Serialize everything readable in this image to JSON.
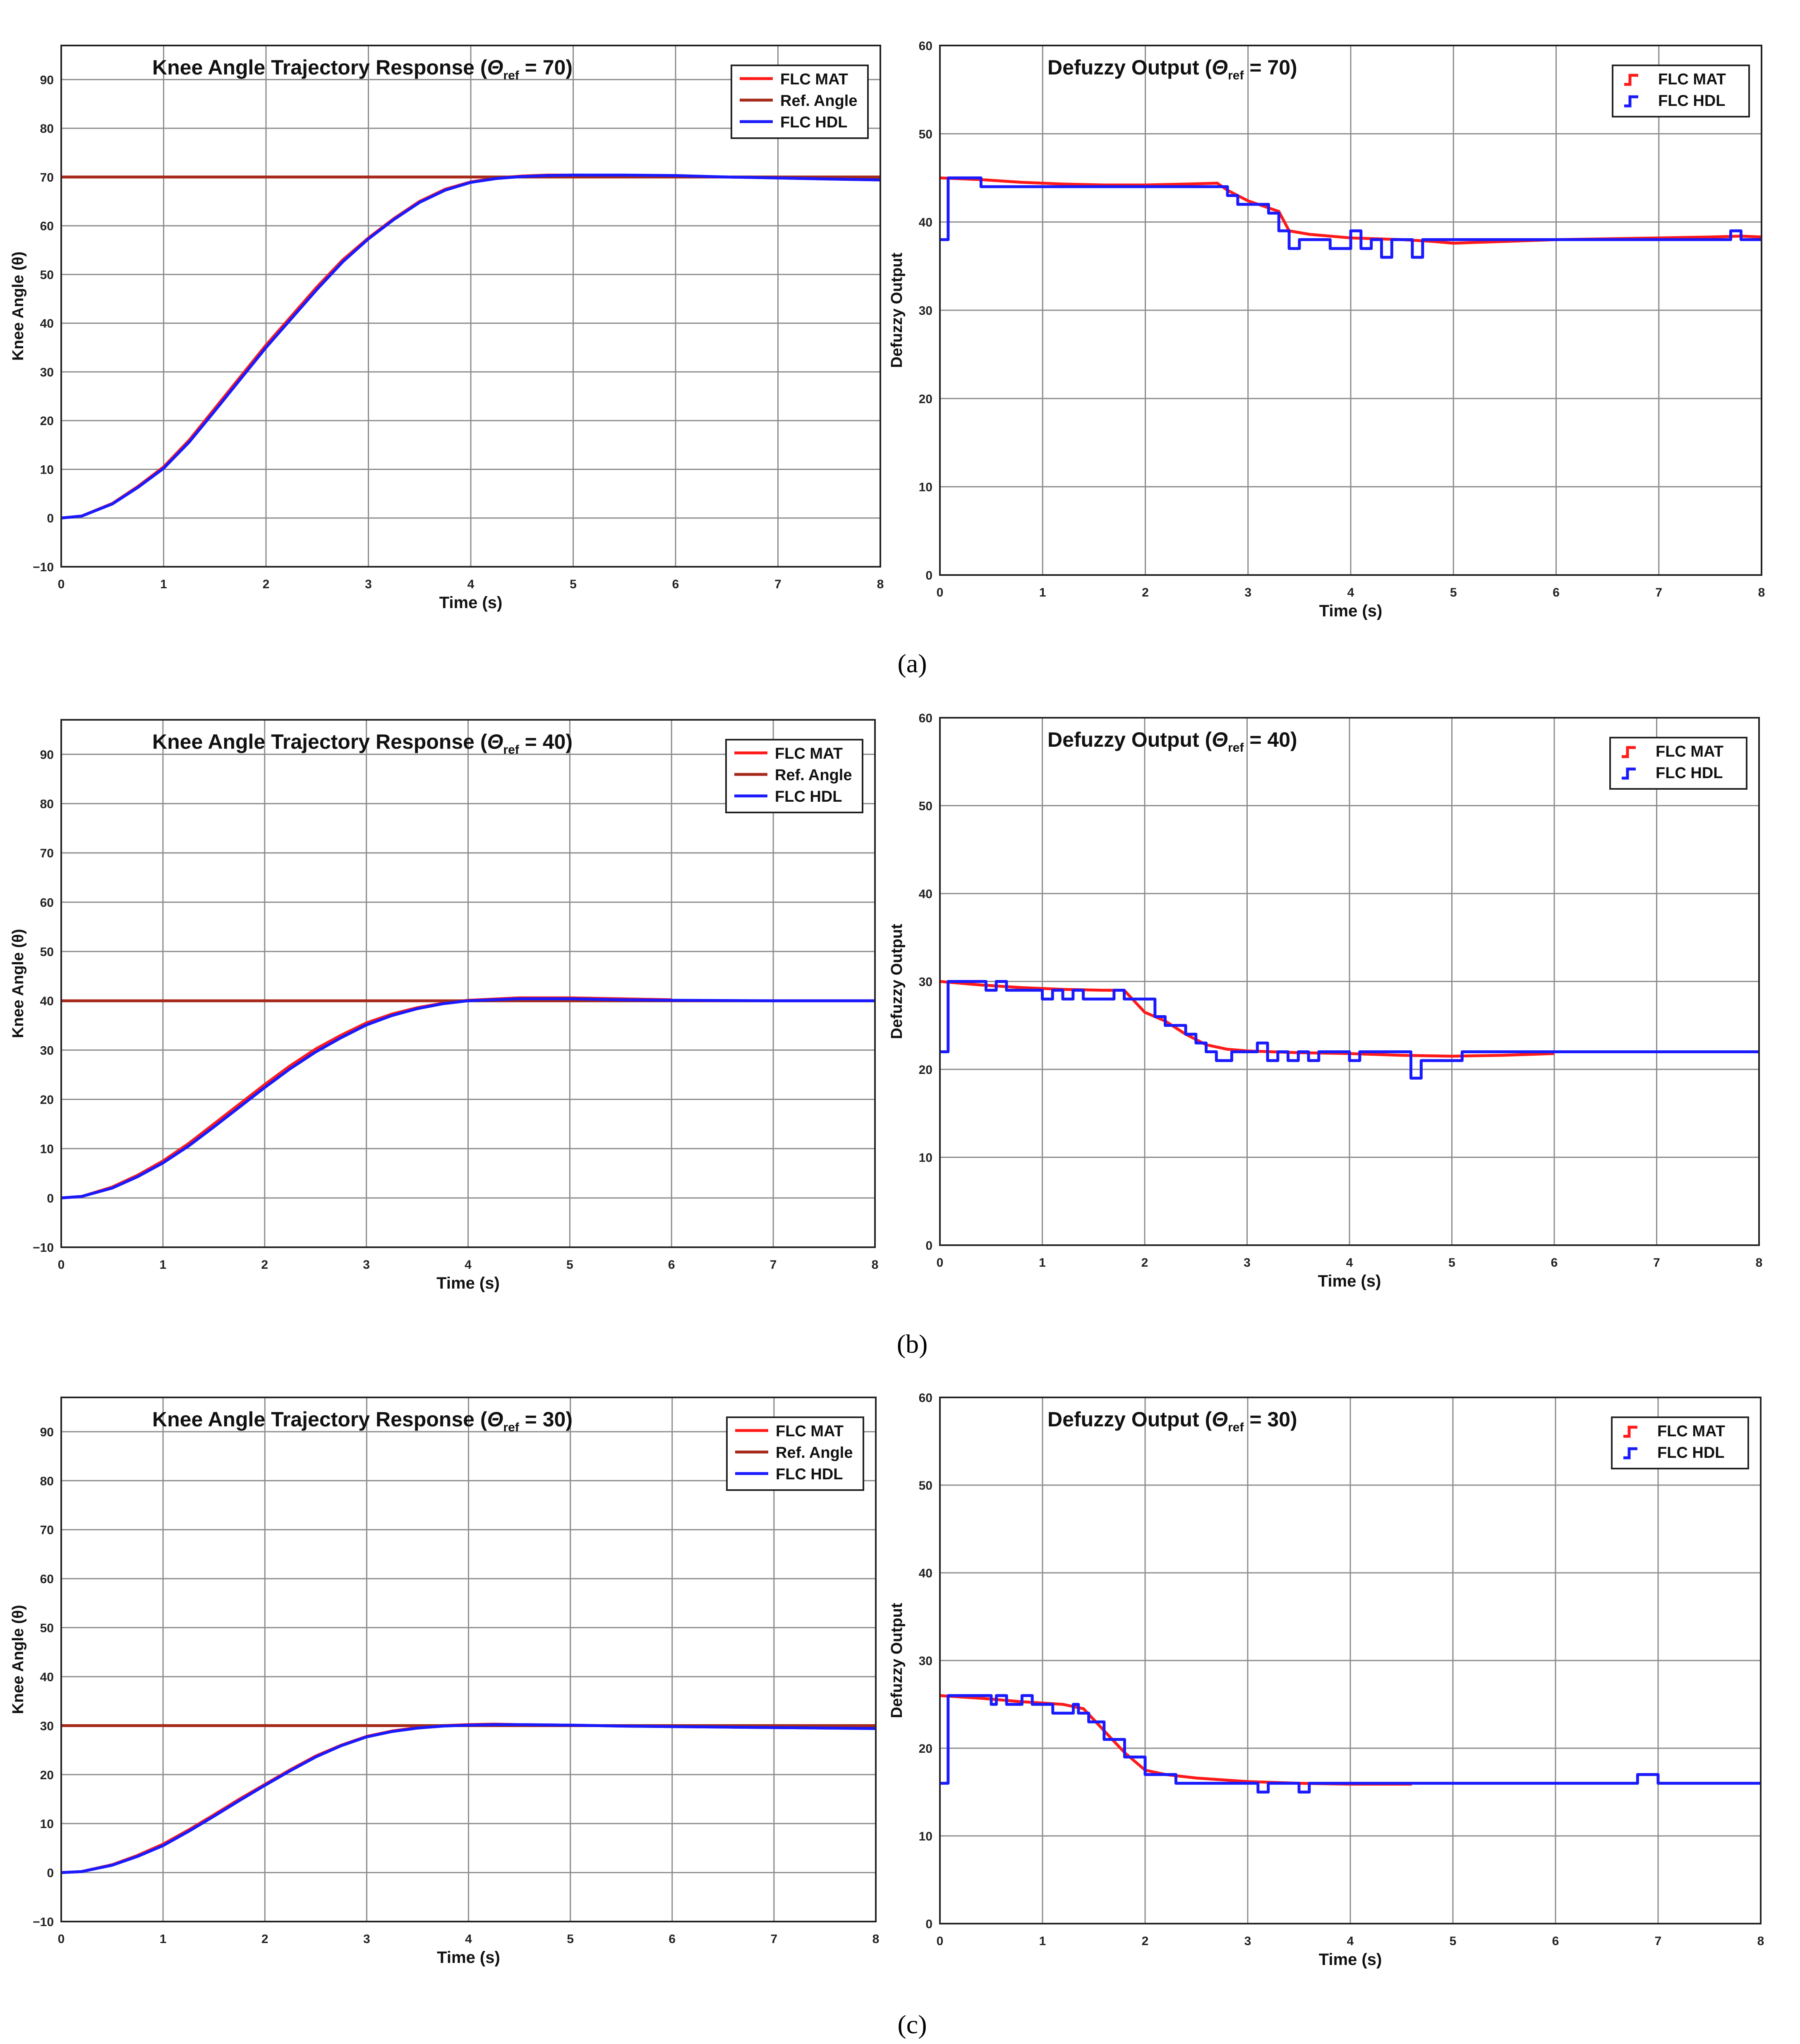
{
  "captions": [
    "(a)",
    "(b)",
    "(c)"
  ],
  "colors": {
    "flc_mat": "#ff1a1a",
    "ref_angle": "#a52a1a",
    "flc_hdl": "#1a1aff",
    "grid": "#8c8c8c",
    "axis": "#222222"
  },
  "chart_data": [
    {
      "type": "line",
      "title_main": "Knee Angle Trajectory Response (",
      "title_symbol": "Θ",
      "title_sub": "ref",
      "title_tail": " = 70)",
      "xlabel": "Time (s)",
      "ylabel": "Knee Angle (θ)",
      "xlim": [
        0,
        8
      ],
      "ylim": [
        -10,
        97
      ],
      "xticks": [
        0,
        1,
        2,
        3,
        4,
        5,
        6,
        7,
        8
      ],
      "yticks": [
        -10,
        0,
        10,
        20,
        30,
        40,
        50,
        60,
        70,
        80,
        90
      ],
      "xtick_labels": [
        "0",
        "1",
        "2",
        "3",
        "4",
        "5",
        "6",
        "7",
        "8"
      ],
      "ytick_labels": [
        "−10",
        "0",
        "10",
        "20",
        "30",
        "40",
        "50",
        "60",
        "70",
        "80",
        "90"
      ],
      "grid": true,
      "legend_position": "top-right",
      "legend_style": "line",
      "series": [
        {
          "name": "FLC MAT",
          "color_key": "flc_mat",
          "step": false,
          "x": [
            0,
            0.2,
            0.5,
            0.75,
            1,
            1.25,
            1.5,
            1.75,
            2,
            2.25,
            2.5,
            2.75,
            3,
            3.25,
            3.5,
            3.75,
            4,
            4.25,
            4.5,
            4.75,
            5,
            5.5,
            6,
            6.5,
            7,
            7.5,
            8
          ],
          "y": [
            0,
            0.4,
            3,
            6.5,
            10.5,
            16,
            22.5,
            29,
            35.5,
            41.5,
            47.5,
            53,
            57.5,
            61.5,
            65,
            67.5,
            69,
            69.8,
            70.2,
            70.4,
            70.4,
            70.3,
            70.2,
            70,
            69.8,
            69.6,
            69.4
          ]
        },
        {
          "name": "Ref. Angle",
          "color_key": "ref_angle",
          "step": false,
          "x": [
            0,
            8
          ],
          "y": [
            70,
            70
          ]
        },
        {
          "name": "FLC HDL",
          "color_key": "flc_hdl",
          "step": false,
          "x": [
            0,
            0.2,
            0.5,
            0.75,
            1,
            1.25,
            1.5,
            1.75,
            2,
            2.25,
            2.5,
            2.75,
            3,
            3.25,
            3.5,
            3.75,
            4,
            4.25,
            4.5,
            4.75,
            5,
            5.5,
            6,
            6.5,
            7,
            7.5,
            8
          ],
          "y": [
            0,
            0.4,
            2.9,
            6.3,
            10.2,
            15.6,
            22,
            28.5,
            35,
            41,
            47,
            52.6,
            57.3,
            61.3,
            64.8,
            67.3,
            68.9,
            69.7,
            70.1,
            70.3,
            70.4,
            70.4,
            70.3,
            70,
            69.8,
            69.6,
            69.4
          ]
        }
      ]
    },
    {
      "type": "line",
      "title_main": "Defuzzy Output (",
      "title_symbol": "Θ",
      "title_sub": "ref",
      "title_tail": " = 70)",
      "xlabel": "Time (s)",
      "ylabel": "Defuzzy Output",
      "xlim": [
        0,
        8
      ],
      "ylim": [
        0,
        60
      ],
      "xticks": [
        0,
        1,
        2,
        3,
        4,
        5,
        6,
        7,
        8
      ],
      "yticks": [
        0,
        10,
        20,
        30,
        40,
        50,
        60
      ],
      "xtick_labels": [
        "0",
        "1",
        "2",
        "3",
        "4",
        "5",
        "6",
        "7",
        "8"
      ],
      "ytick_labels": [
        "0",
        "10",
        "20",
        "30",
        "40",
        "50",
        "60"
      ],
      "grid": true,
      "legend_position": "top-right",
      "legend_style": "step",
      "series": [
        {
          "name": "FLC MAT",
          "color_key": "flc_mat",
          "step": false,
          "x": [
            0,
            0.4,
            0.8,
            1.2,
            1.6,
            2,
            2.4,
            2.7,
            2.8,
            2.9,
            3,
            3.1,
            3.2,
            3.3,
            3.4,
            3.6,
            3.8,
            4,
            4.5,
            4.8,
            5,
            5.5,
            6,
            6.5,
            7,
            7.5,
            7.8,
            8
          ],
          "y": [
            45,
            44.8,
            44.5,
            44.3,
            44.2,
            44.2,
            44.3,
            44.4,
            43.6,
            43,
            42.4,
            42,
            41.6,
            41.2,
            39,
            38.6,
            38.4,
            38.2,
            38,
            37.8,
            37.6,
            37.8,
            38,
            38.1,
            38.2,
            38.3,
            38.4,
            38.3
          ]
        },
        {
          "name": "FLC HDL",
          "color_key": "flc_hdl",
          "step": true,
          "x": [
            0,
            0.08,
            0.4,
            0.6,
            0.8,
            2.6,
            2.8,
            2.9,
            3,
            3.2,
            3.3,
            3.4,
            3.5,
            3.8,
            4,
            4.1,
            4.2,
            4.3,
            4.4,
            4.5,
            4.6,
            4.7,
            4.8,
            5,
            6,
            7,
            7.7,
            7.8,
            8
          ],
          "y": [
            38,
            45,
            44,
            44,
            44,
            44,
            43,
            42,
            42,
            41,
            39,
            37,
            38,
            37,
            39,
            37,
            38,
            36,
            38,
            38,
            36,
            38,
            38,
            38,
            38,
            38,
            39,
            38,
            38
          ]
        }
      ]
    },
    {
      "type": "line",
      "title_main": "Knee Angle Trajectory Response (",
      "title_symbol": "Θ",
      "title_sub": "ref",
      "title_tail": " = 40)",
      "xlabel": "Time (s)",
      "ylabel": "Knee Angle (θ)",
      "xlim": [
        0,
        8
      ],
      "ylim": [
        -10,
        97
      ],
      "xticks": [
        0,
        1,
        2,
        3,
        4,
        5,
        6,
        7,
        8
      ],
      "yticks": [
        -10,
        0,
        10,
        20,
        30,
        40,
        50,
        60,
        70,
        80,
        90
      ],
      "xtick_labels": [
        "0",
        "1",
        "2",
        "3",
        "4",
        "5",
        "6",
        "7",
        "8"
      ],
      "ytick_labels": [
        "−10",
        "0",
        "10",
        "20",
        "30",
        "40",
        "50",
        "60",
        "70",
        "80",
        "90"
      ],
      "grid": true,
      "legend_position": "top-right",
      "legend_style": "line",
      "series": [
        {
          "name": "FLC MAT",
          "color_key": "flc_mat",
          "step": false,
          "x": [
            0,
            0.2,
            0.5,
            0.75,
            1,
            1.25,
            1.5,
            1.75,
            2,
            2.25,
            2.5,
            2.75,
            3,
            3.25,
            3.5,
            3.75,
            4,
            4.5,
            5,
            5.5,
            6
          ],
          "y": [
            0,
            0.3,
            2.2,
            4.6,
            7.5,
            11,
            15,
            19,
            23,
            26.8,
            30.2,
            33,
            35.5,
            37.3,
            38.6,
            39.5,
            40.1,
            40.6,
            40.6,
            40.4,
            40.2
          ]
        },
        {
          "name": "Ref. Angle",
          "color_key": "ref_angle",
          "step": false,
          "x": [
            0,
            8
          ],
          "y": [
            40,
            40
          ]
        },
        {
          "name": "FLC HDL",
          "color_key": "flc_hdl",
          "step": false,
          "x": [
            0,
            0.2,
            0.5,
            0.75,
            1,
            1.25,
            1.5,
            1.75,
            2,
            2.25,
            2.5,
            2.75,
            3,
            3.25,
            3.5,
            3.75,
            4,
            4.5,
            5,
            5.5,
            6,
            7,
            8
          ],
          "y": [
            0,
            0.3,
            2,
            4.3,
            7.1,
            10.5,
            14.4,
            18.4,
            22.4,
            26.2,
            29.6,
            32.5,
            35.1,
            37,
            38.4,
            39.4,
            40,
            40.4,
            40.4,
            40.2,
            40.1,
            40,
            40
          ]
        }
      ]
    },
    {
      "type": "line",
      "title_main": "Defuzzy Output (",
      "title_symbol": "Θ",
      "title_sub": "ref",
      "title_tail": " = 40)",
      "xlabel": "Time (s)",
      "ylabel": "Defuzzy Output",
      "xlim": [
        0,
        8
      ],
      "ylim": [
        0,
        60
      ],
      "xticks": [
        0,
        1,
        2,
        3,
        4,
        5,
        6,
        7,
        8
      ],
      "yticks": [
        0,
        10,
        20,
        30,
        40,
        50,
        60
      ],
      "xtick_labels": [
        "0",
        "1",
        "2",
        "3",
        "4",
        "5",
        "6",
        "7",
        "8"
      ],
      "ytick_labels": [
        "0",
        "10",
        "20",
        "30",
        "40",
        "50",
        "60"
      ],
      "grid": true,
      "legend_position": "top-right",
      "legend_style": "step",
      "series": [
        {
          "name": "FLC MAT",
          "color_key": "flc_mat",
          "step": false,
          "x": [
            0,
            0.4,
            0.8,
            1.2,
            1.6,
            1.8,
            2,
            2.2,
            2.4,
            2.6,
            2.8,
            3,
            3.5,
            4,
            4.5,
            5,
            5.5,
            6
          ],
          "y": [
            30,
            29.6,
            29.3,
            29.1,
            29,
            29,
            26.5,
            25.5,
            24,
            22.8,
            22.3,
            22.1,
            21.9,
            21.8,
            21.6,
            21.5,
            21.6,
            21.8
          ]
        },
        {
          "name": "FLC HDL",
          "color_key": "flc_hdl",
          "step": true,
          "x": [
            0,
            0.08,
            0.45,
            0.55,
            0.65,
            0.75,
            0.85,
            1,
            1.1,
            1.2,
            1.3,
            1.4,
            1.6,
            1.7,
            1.8,
            1.95,
            2.1,
            2.2,
            2.4,
            2.5,
            2.6,
            2.7,
            2.85,
            3,
            3.1,
            3.2,
            3.3,
            3.4,
            3.5,
            3.6,
            3.7,
            3.9,
            4,
            4.1,
            4.5,
            4.6,
            4.7,
            5.1,
            5.5,
            6,
            7,
            8
          ],
          "y": [
            22,
            30,
            29,
            30,
            29,
            29,
            29,
            28,
            29,
            28,
            29,
            28,
            28,
            29,
            28,
            28,
            26,
            25,
            24,
            23,
            22,
            21,
            22,
            22,
            23,
            21,
            22,
            21,
            22,
            21,
            22,
            22,
            21,
            22,
            22,
            19,
            21,
            22,
            22,
            22,
            22,
            22
          ]
        }
      ]
    },
    {
      "type": "line",
      "title_main": "Knee Angle Trajectory Response (",
      "title_symbol": "Θ",
      "title_sub": "ref",
      "title_tail": " = 30)",
      "xlabel": "Time (s)",
      "ylabel": "Knee Angle (θ)",
      "xlim": [
        0,
        8
      ],
      "ylim": [
        -10,
        97
      ],
      "xticks": [
        0,
        1,
        2,
        3,
        4,
        5,
        6,
        7,
        8
      ],
      "yticks": [
        -10,
        0,
        10,
        20,
        30,
        40,
        50,
        60,
        70,
        80,
        90
      ],
      "xtick_labels": [
        "0",
        "1",
        "2",
        "3",
        "4",
        "5",
        "6",
        "7",
        "8"
      ],
      "ytick_labels": [
        "−10",
        "0",
        "10",
        "20",
        "30",
        "40",
        "50",
        "60",
        "70",
        "80",
        "90"
      ],
      "grid": true,
      "legend_position": "top-right",
      "legend_style": "line",
      "series": [
        {
          "name": "FLC MAT",
          "color_key": "flc_mat",
          "step": false,
          "x": [
            0,
            0.2,
            0.5,
            0.75,
            1,
            1.25,
            1.5,
            1.75,
            2,
            2.25,
            2.5,
            2.75,
            3,
            3.25,
            3.5,
            3.75,
            4,
            4.25,
            4.5,
            5,
            5.5,
            6,
            6.5,
            7,
            7.5,
            8
          ],
          "y": [
            0,
            0.2,
            1.6,
            3.5,
            5.8,
            8.7,
            11.8,
            15,
            18,
            21,
            23.8,
            26,
            27.8,
            28.9,
            29.6,
            30,
            30.2,
            30.3,
            30.2,
            30.1,
            29.9,
            29.8,
            29.7,
            29.6,
            29.5,
            29.5
          ]
        },
        {
          "name": "Ref. Angle",
          "color_key": "ref_angle",
          "step": false,
          "x": [
            0,
            8
          ],
          "y": [
            30,
            30
          ]
        },
        {
          "name": "FLC HDL",
          "color_key": "flc_hdl",
          "step": false,
          "x": [
            0,
            0.2,
            0.5,
            0.75,
            1,
            1.25,
            1.5,
            1.75,
            2,
            2.25,
            2.5,
            2.75,
            3,
            3.25,
            3.5,
            3.75,
            4,
            4.25,
            4.5,
            5,
            5.5,
            6,
            6.5,
            7,
            7.5,
            8
          ],
          "y": [
            0,
            0.2,
            1.5,
            3.3,
            5.5,
            8.4,
            11.5,
            14.7,
            17.8,
            20.8,
            23.6,
            25.9,
            27.7,
            28.8,
            29.5,
            29.9,
            30.1,
            30.2,
            30.2,
            30.1,
            29.9,
            29.8,
            29.7,
            29.6,
            29.5,
            29.4
          ]
        }
      ]
    },
    {
      "type": "line",
      "title_main": "Defuzzy Output (",
      "title_symbol": "Θ",
      "title_sub": "ref",
      "title_tail": " = 30)",
      "xlabel": "Time (s)",
      "ylabel": "Defuzzy Output",
      "xlim": [
        0,
        8
      ],
      "ylim": [
        0,
        60
      ],
      "xticks": [
        0,
        1,
        2,
        3,
        4,
        5,
        6,
        7,
        8
      ],
      "yticks": [
        0,
        10,
        20,
        30,
        40,
        50,
        60
      ],
      "xtick_labels": [
        "0",
        "1",
        "2",
        "3",
        "4",
        "5",
        "6",
        "7",
        "8"
      ],
      "ytick_labels": [
        "0",
        "10",
        "20",
        "30",
        "40",
        "50",
        "60"
      ],
      "grid": true,
      "legend_position": "top-right",
      "legend_style": "step",
      "series": [
        {
          "name": "FLC MAT",
          "color_key": "flc_mat",
          "step": false,
          "x": [
            0,
            0.4,
            0.8,
            1.2,
            1.4,
            1.6,
            1.8,
            2,
            2.2,
            2.5,
            3,
            3.5,
            4,
            4.6
          ],
          "y": [
            26,
            25.7,
            25.3,
            25,
            24.5,
            22,
            19.5,
            17.5,
            17,
            16.6,
            16.2,
            16,
            15.9,
            15.9
          ]
        },
        {
          "name": "FLC HDL",
          "color_key": "flc_hdl",
          "step": true,
          "x": [
            0,
            0.08,
            0.4,
            0.5,
            0.55,
            0.65,
            0.7,
            0.8,
            0.9,
            1,
            1.1,
            1.3,
            1.35,
            1.45,
            1.6,
            1.8,
            2,
            2.3,
            2.5,
            3,
            3.1,
            3.2,
            3.3,
            3.4,
            3.5,
            3.6,
            4,
            5,
            6,
            6.7,
            6.8,
            7,
            8
          ],
          "y": [
            16,
            26,
            26,
            25,
            26,
            25,
            25,
            26,
            25,
            25,
            24,
            25,
            24,
            23,
            21,
            19,
            17,
            16,
            16,
            16,
            15,
            16,
            16,
            16,
            15,
            16,
            16,
            16,
            16,
            16,
            17,
            16,
            16
          ]
        }
      ]
    }
  ]
}
